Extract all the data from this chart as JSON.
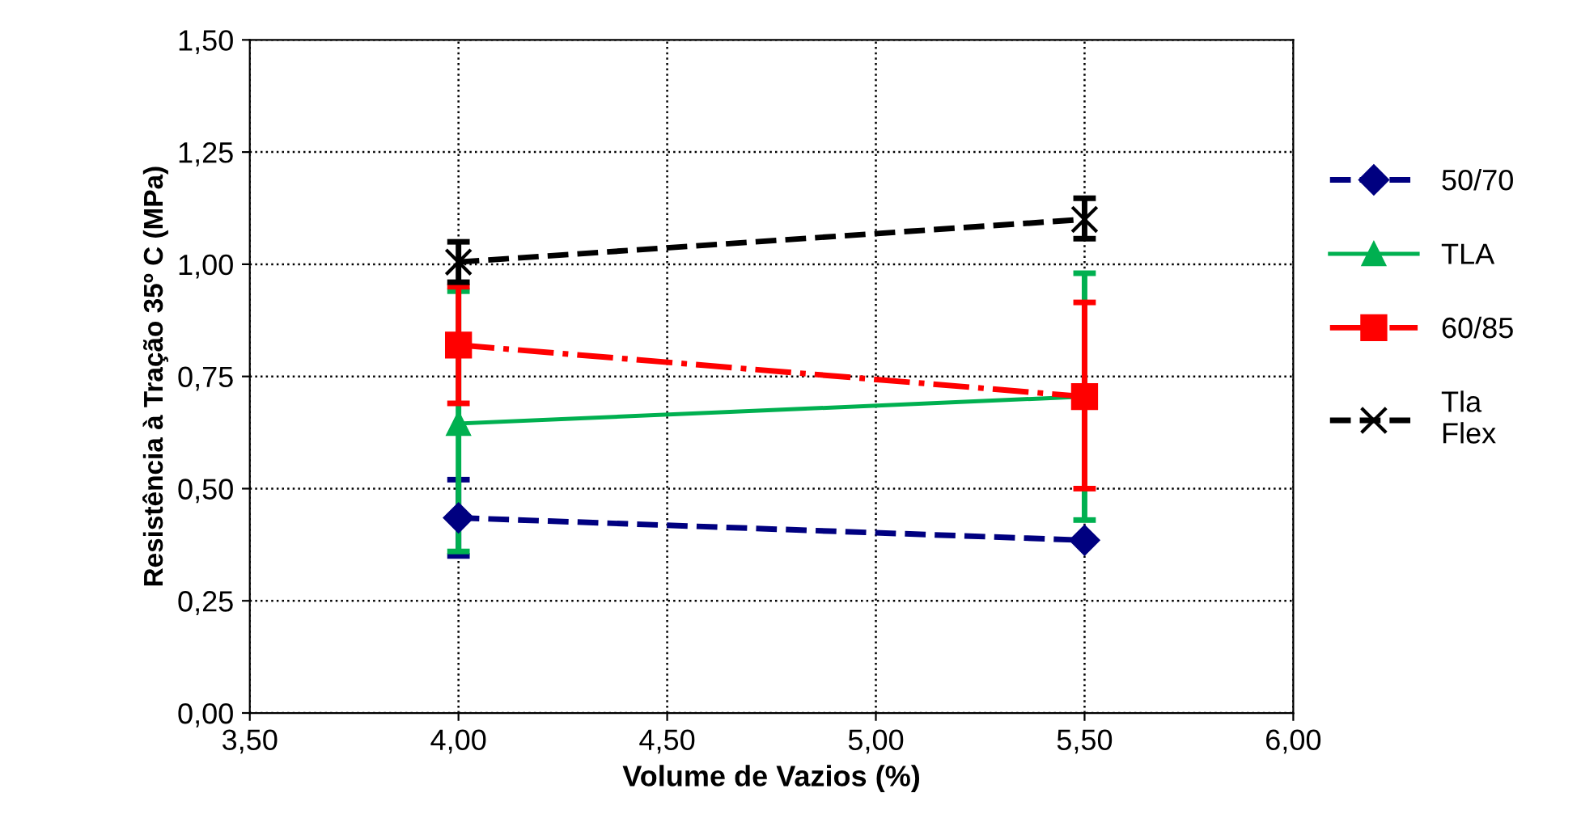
{
  "chart_data": {
    "type": "line",
    "xlabel": "Volume de Vazios (%)",
    "ylabel": "Resistência à Tração 35º C (MPa)",
    "x": [
      4.0,
      5.5
    ],
    "series": [
      {
        "name": "50/70",
        "color": "#000080",
        "values": [
          0.435,
          0.385
        ],
        "marker": "diamond",
        "line_style": "dashed",
        "errors": [
          [
            0.35,
            0.52
          ],
          null
        ]
      },
      {
        "name": "TLA",
        "color": "#00b050",
        "values": [
          0.645,
          0.705
        ],
        "marker": "triangle",
        "line_style": "solid",
        "errors": [
          [
            0.36,
            0.94
          ],
          [
            0.43,
            0.98
          ]
        ]
      },
      {
        "name": "60/85",
        "color": "#ff0000",
        "values": [
          0.82,
          0.705
        ],
        "marker": "square",
        "line_style": "dotted",
        "errors": [
          [
            0.69,
            0.95
          ],
          [
            0.5,
            0.915
          ]
        ]
      },
      {
        "name": "Tla\nFlex",
        "color": "#000000",
        "values": [
          1.005,
          1.1
        ],
        "marker": "cross",
        "line_style": "dashed",
        "errors": [
          [
            0.96,
            1.05
          ],
          [
            1.057,
            1.147
          ]
        ]
      }
    ],
    "xlim": [
      3.5,
      6.0
    ],
    "xticks": [
      {
        "value": 3.5,
        "label": "3,50"
      },
      {
        "value": 4.0,
        "label": "4,00"
      },
      {
        "value": 4.5,
        "label": "4,50"
      },
      {
        "value": 5.0,
        "label": "5,00"
      },
      {
        "value": 5.5,
        "label": "5,50"
      },
      {
        "value": 6.0,
        "label": "6,00"
      }
    ],
    "ylim": [
      0,
      1.5
    ],
    "yticks": [
      {
        "value": 0,
        "label": "0,00"
      },
      {
        "value": 0.25,
        "label": "0,25"
      },
      {
        "value": 0.5,
        "label": "0,50"
      },
      {
        "value": 0.75,
        "label": "0,75"
      },
      {
        "value": 1.0,
        "label": "1,00"
      },
      {
        "value": 1.25,
        "label": "1,25"
      },
      {
        "value": 1.5,
        "label": "1,50"
      }
    ],
    "grid": true,
    "legend": "right"
  }
}
